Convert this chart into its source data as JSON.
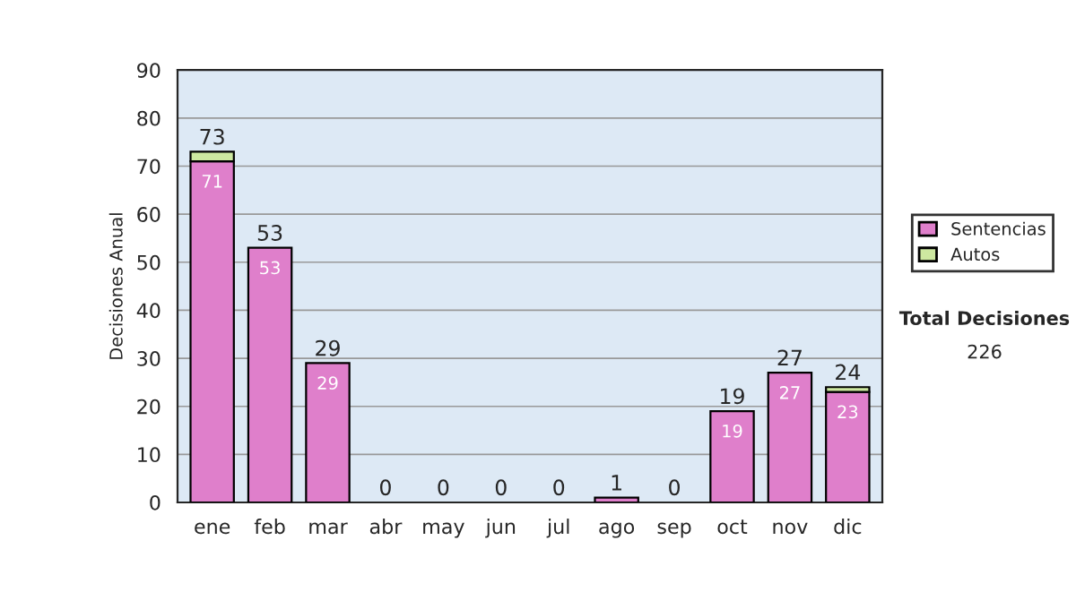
{
  "chart_data": {
    "type": "bar",
    "stacked": true,
    "ylabel": "Decisiones Anual",
    "categories": [
      "ene",
      "feb",
      "mar",
      "abr",
      "may",
      "jun",
      "jul",
      "ago",
      "sep",
      "oct",
      "nov",
      "dic"
    ],
    "series": [
      {
        "name": "Sentencias",
        "color": "#df7fcb",
        "values": [
          71,
          53,
          29,
          0,
          0,
          0,
          0,
          1,
          0,
          19,
          27,
          23
        ],
        "value_labels": [
          "71",
          "53",
          "29",
          null,
          null,
          null,
          null,
          null,
          null,
          "19",
          "27",
          "23"
        ]
      },
      {
        "name": "Autos",
        "color": "#cde8a0",
        "values": [
          2,
          0,
          0,
          0,
          0,
          0,
          0,
          0,
          0,
          0,
          0,
          1
        ]
      }
    ],
    "totals": [
      "73",
      "53",
      "29",
      "0",
      "0",
      "0",
      "0",
      "1",
      "0",
      "19",
      "27",
      "24"
    ],
    "ylim": [
      0,
      90
    ],
    "yticks": [
      0,
      10,
      20,
      30,
      40,
      50,
      60,
      70,
      80,
      90
    ],
    "grid": "y",
    "legend": "right",
    "annotations": [
      "Total Decisiones",
      "226"
    ]
  }
}
